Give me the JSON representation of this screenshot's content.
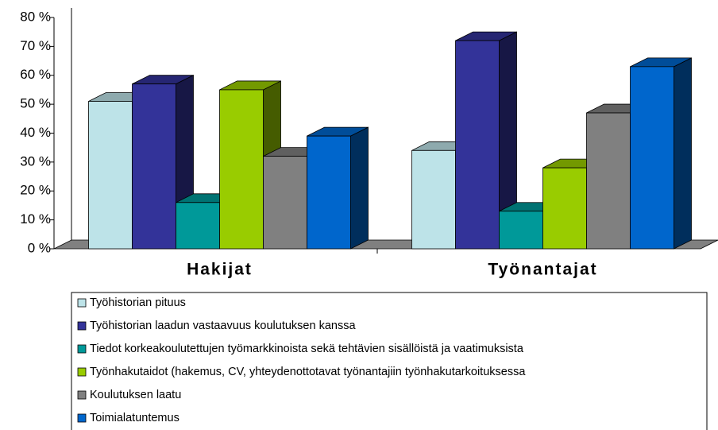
{
  "chart_data": {
    "type": "bar3d",
    "categories": [
      "Hakijat",
      "Työnantajat"
    ],
    "series": [
      {
        "name": "Työhistorian pituus",
        "color": "#BDE3E8",
        "values": [
          51,
          34
        ]
      },
      {
        "name": "Työhistorian laadun vastaavuus koulutuksen kanssa",
        "color": "#333399",
        "values": [
          57,
          72
        ]
      },
      {
        "name": "Tiedot korkeakoulutettujen työmarkkinoista sekä tehtävien sisällöistä ja vaatimuksista",
        "color": "#009999",
        "values": [
          16,
          13
        ]
      },
      {
        "name": "Työnhakutaidot (hakemus, CV, yhteydenottotavat työnantajiin työnhakutarkoituksessa",
        "color": "#99CC00",
        "values": [
          55,
          28
        ]
      },
      {
        "name": "Koulutuksen laatu",
        "color": "#808080",
        "values": [
          32,
          47
        ]
      },
      {
        "name": "Toimialatuntemus",
        "color": "#0066CC",
        "values": [
          39,
          63
        ]
      }
    ],
    "ylim": [
      0,
      80
    ],
    "yticks": [
      {
        "value": 0,
        "label": "0 %"
      },
      {
        "value": 10,
        "label": "10 %"
      },
      {
        "value": 20,
        "label": "20 %"
      },
      {
        "value": 30,
        "label": "30 %"
      },
      {
        "value": 40,
        "label": "40 %"
      },
      {
        "value": 50,
        "label": "50 %"
      },
      {
        "value": 60,
        "label": "60 %"
      },
      {
        "value": 70,
        "label": "70 %"
      },
      {
        "value": 80,
        "label": "80 %"
      }
    ],
    "legend": "bottom"
  }
}
